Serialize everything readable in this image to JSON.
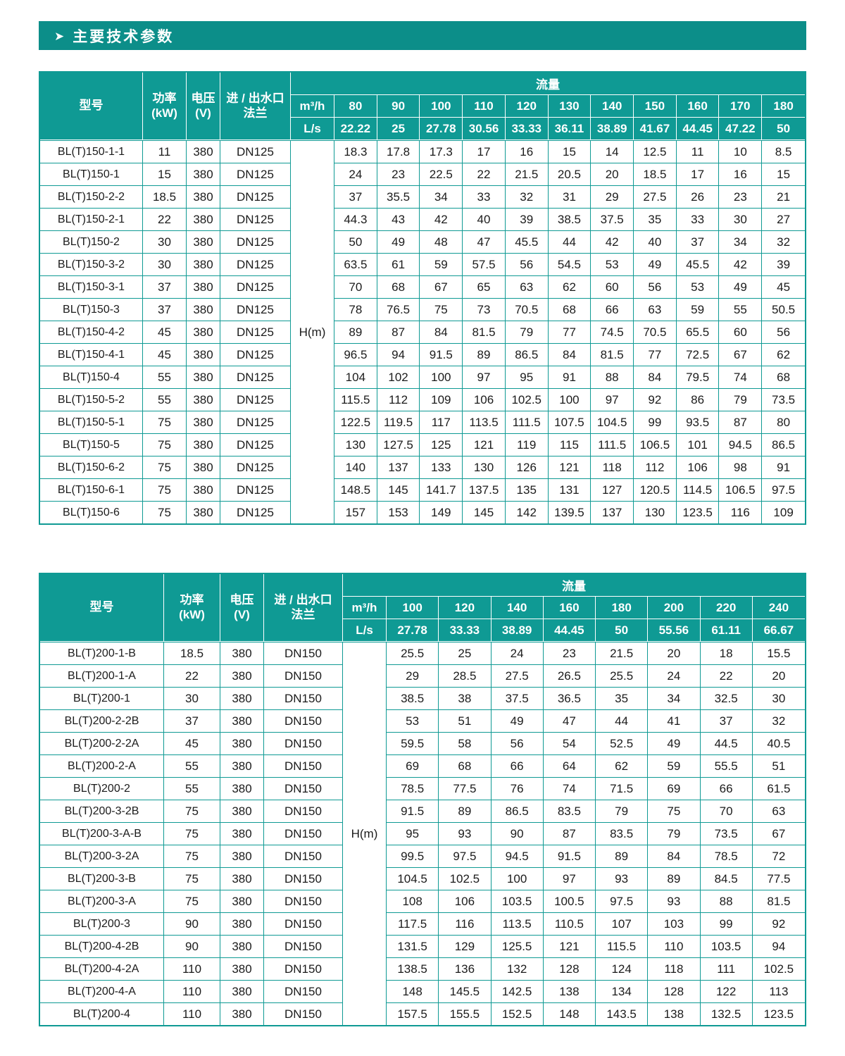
{
  "page": {
    "section_title": "主要技术参数",
    "arrow_icon": "➤",
    "accent_color": "#0f9a94",
    "banner_color": "#0c8e89"
  },
  "table_headers": {
    "model": "型号",
    "power": "功率\n(kW)",
    "voltage": "电压\n(V)",
    "flange": "进 / 出水口\n法兰",
    "flow_group": "流量",
    "unit_m3h": "m³/h",
    "unit_ls": "L/s",
    "head_label": "H(m)"
  },
  "tables": [
    {
      "flow_m3h": [
        "80",
        "90",
        "100",
        "110",
        "120",
        "130",
        "140",
        "150",
        "160",
        "170",
        "180"
      ],
      "flow_ls": [
        "22.22",
        "25",
        "27.78",
        "30.56",
        "33.33",
        "36.11",
        "38.89",
        "41.67",
        "44.45",
        "47.22",
        "50"
      ],
      "rows": [
        {
          "model": "BL(T)150-1-1",
          "power": "11",
          "voltage": "380",
          "flange": "DN125",
          "head_m": [
            "18.3",
            "17.8",
            "17.3",
            "17",
            "16",
            "15",
            "14",
            "12.5",
            "11",
            "10",
            "8.5"
          ]
        },
        {
          "model": "BL(T)150-1",
          "power": "15",
          "voltage": "380",
          "flange": "DN125",
          "head_m": [
            "24",
            "23",
            "22.5",
            "22",
            "21.5",
            "20.5",
            "20",
            "18.5",
            "17",
            "16",
            "15"
          ]
        },
        {
          "model": "BL(T)150-2-2",
          "power": "18.5",
          "voltage": "380",
          "flange": "DN125",
          "head_m": [
            "37",
            "35.5",
            "34",
            "33",
            "32",
            "31",
            "29",
            "27.5",
            "26",
            "23",
            "21"
          ]
        },
        {
          "model": "BL(T)150-2-1",
          "power": "22",
          "voltage": "380",
          "flange": "DN125",
          "head_m": [
            "44.3",
            "43",
            "42",
            "40",
            "39",
            "38.5",
            "37.5",
            "35",
            "33",
            "30",
            "27"
          ]
        },
        {
          "model": "BL(T)150-2",
          "power": "30",
          "voltage": "380",
          "flange": "DN125",
          "head_m": [
            "50",
            "49",
            "48",
            "47",
            "45.5",
            "44",
            "42",
            "40",
            "37",
            "34",
            "32"
          ]
        },
        {
          "model": "BL(T)150-3-2",
          "power": "30",
          "voltage": "380",
          "flange": "DN125",
          "head_m": [
            "63.5",
            "61",
            "59",
            "57.5",
            "56",
            "54.5",
            "53",
            "49",
            "45.5",
            "42",
            "39"
          ]
        },
        {
          "model": "BL(T)150-3-1",
          "power": "37",
          "voltage": "380",
          "flange": "DN125",
          "head_m": [
            "70",
            "68",
            "67",
            "65",
            "63",
            "62",
            "60",
            "56",
            "53",
            "49",
            "45"
          ]
        },
        {
          "model": "BL(T)150-3",
          "power": "37",
          "voltage": "380",
          "flange": "DN125",
          "head_m": [
            "78",
            "76.5",
            "75",
            "73",
            "70.5",
            "68",
            "66",
            "63",
            "59",
            "55",
            "50.5"
          ]
        },
        {
          "model": "BL(T)150-4-2",
          "power": "45",
          "voltage": "380",
          "flange": "DN125",
          "head_m": [
            "89",
            "87",
            "84",
            "81.5",
            "79",
            "77",
            "74.5",
            "70.5",
            "65.5",
            "60",
            "56"
          ]
        },
        {
          "model": "BL(T)150-4-1",
          "power": "45",
          "voltage": "380",
          "flange": "DN125",
          "head_m": [
            "96.5",
            "94",
            "91.5",
            "89",
            "86.5",
            "84",
            "81.5",
            "77",
            "72.5",
            "67",
            "62"
          ]
        },
        {
          "model": "BL(T)150-4",
          "power": "55",
          "voltage": "380",
          "flange": "DN125",
          "head_m": [
            "104",
            "102",
            "100",
            "97",
            "95",
            "91",
            "88",
            "84",
            "79.5",
            "74",
            "68"
          ]
        },
        {
          "model": "BL(T)150-5-2",
          "power": "55",
          "voltage": "380",
          "flange": "DN125",
          "head_m": [
            "115.5",
            "112",
            "109",
            "106",
            "102.5",
            "100",
            "97",
            "92",
            "86",
            "79",
            "73.5"
          ]
        },
        {
          "model": "BL(T)150-5-1",
          "power": "75",
          "voltage": "380",
          "flange": "DN125",
          "head_m": [
            "122.5",
            "119.5",
            "117",
            "113.5",
            "111.5",
            "107.5",
            "104.5",
            "99",
            "93.5",
            "87",
            "80"
          ]
        },
        {
          "model": "BL(T)150-5",
          "power": "75",
          "voltage": "380",
          "flange": "DN125",
          "head_m": [
            "130",
            "127.5",
            "125",
            "121",
            "119",
            "115",
            "111.5",
            "106.5",
            "101",
            "94.5",
            "86.5"
          ]
        },
        {
          "model": "BL(T)150-6-2",
          "power": "75",
          "voltage": "380",
          "flange": "DN125",
          "head_m": [
            "140",
            "137",
            "133",
            "130",
            "126",
            "121",
            "118",
            "112",
            "106",
            "98",
            "91"
          ]
        },
        {
          "model": "BL(T)150-6-1",
          "power": "75",
          "voltage": "380",
          "flange": "DN125",
          "head_m": [
            "148.5",
            "145",
            "141.7",
            "137.5",
            "135",
            "131",
            "127",
            "120.5",
            "114.5",
            "106.5",
            "97.5"
          ]
        },
        {
          "model": "BL(T)150-6",
          "power": "75",
          "voltage": "380",
          "flange": "DN125",
          "head_m": [
            "157",
            "153",
            "149",
            "145",
            "142",
            "139.5",
            "137",
            "130",
            "123.5",
            "116",
            "109"
          ]
        }
      ]
    },
    {
      "flow_m3h": [
        "100",
        "120",
        "140",
        "160",
        "180",
        "200",
        "220",
        "240"
      ],
      "flow_ls": [
        "27.78",
        "33.33",
        "38.89",
        "44.45",
        "50",
        "55.56",
        "61.11",
        "66.67"
      ],
      "rows": [
        {
          "model": "BL(T)200-1-B",
          "power": "18.5",
          "voltage": "380",
          "flange": "DN150",
          "head_m": [
            "25.5",
            "25",
            "24",
            "23",
            "21.5",
            "20",
            "18",
            "15.5"
          ]
        },
        {
          "model": "BL(T)200-1-A",
          "power": "22",
          "voltage": "380",
          "flange": "DN150",
          "head_m": [
            "29",
            "28.5",
            "27.5",
            "26.5",
            "25.5",
            "24",
            "22",
            "20"
          ]
        },
        {
          "model": "BL(T)200-1",
          "power": "30",
          "voltage": "380",
          "flange": "DN150",
          "head_m": [
            "38.5",
            "38",
            "37.5",
            "36.5",
            "35",
            "34",
            "32.5",
            "30"
          ]
        },
        {
          "model": "BL(T)200-2-2B",
          "power": "37",
          "voltage": "380",
          "flange": "DN150",
          "head_m": [
            "53",
            "51",
            "49",
            "47",
            "44",
            "41",
            "37",
            "32"
          ]
        },
        {
          "model": "BL(T)200-2-2A",
          "power": "45",
          "voltage": "380",
          "flange": "DN150",
          "head_m": [
            "59.5",
            "58",
            "56",
            "54",
            "52.5",
            "49",
            "44.5",
            "40.5"
          ]
        },
        {
          "model": "BL(T)200-2-A",
          "power": "55",
          "voltage": "380",
          "flange": "DN150",
          "head_m": [
            "69",
            "68",
            "66",
            "64",
            "62",
            "59",
            "55.5",
            "51"
          ]
        },
        {
          "model": "BL(T)200-2",
          "power": "55",
          "voltage": "380",
          "flange": "DN150",
          "head_m": [
            "78.5",
            "77.5",
            "76",
            "74",
            "71.5",
            "69",
            "66",
            "61.5"
          ]
        },
        {
          "model": "BL(T)200-3-2B",
          "power": "75",
          "voltage": "380",
          "flange": "DN150",
          "head_m": [
            "91.5",
            "89",
            "86.5",
            "83.5",
            "79",
            "75",
            "70",
            "63"
          ]
        },
        {
          "model": "BL(T)200-3-A-B",
          "power": "75",
          "voltage": "380",
          "flange": "DN150",
          "head_m": [
            "95",
            "93",
            "90",
            "87",
            "83.5",
            "79",
            "73.5",
            "67"
          ]
        },
        {
          "model": "BL(T)200-3-2A",
          "power": "75",
          "voltage": "380",
          "flange": "DN150",
          "head_m": [
            "99.5",
            "97.5",
            "94.5",
            "91.5",
            "89",
            "84",
            "78.5",
            "72"
          ]
        },
        {
          "model": "BL(T)200-3-B",
          "power": "75",
          "voltage": "380",
          "flange": "DN150",
          "head_m": [
            "104.5",
            "102.5",
            "100",
            "97",
            "93",
            "89",
            "84.5",
            "77.5"
          ]
        },
        {
          "model": "BL(T)200-3-A",
          "power": "75",
          "voltage": "380",
          "flange": "DN150",
          "head_m": [
            "108",
            "106",
            "103.5",
            "100.5",
            "97.5",
            "93",
            "88",
            "81.5"
          ]
        },
        {
          "model": "BL(T)200-3",
          "power": "90",
          "voltage": "380",
          "flange": "DN150",
          "head_m": [
            "117.5",
            "116",
            "113.5",
            "110.5",
            "107",
            "103",
            "99",
            "92"
          ]
        },
        {
          "model": "BL(T)200-4-2B",
          "power": "90",
          "voltage": "380",
          "flange": "DN150",
          "head_m": [
            "131.5",
            "129",
            "125.5",
            "121",
            "115.5",
            "110",
            "103.5",
            "94"
          ]
        },
        {
          "model": "BL(T)200-4-2A",
          "power": "110",
          "voltage": "380",
          "flange": "DN150",
          "head_m": [
            "138.5",
            "136",
            "132",
            "128",
            "124",
            "118",
            "111",
            "102.5"
          ]
        },
        {
          "model": "BL(T)200-4-A",
          "power": "110",
          "voltage": "380",
          "flange": "DN150",
          "head_m": [
            "148",
            "145.5",
            "142.5",
            "138",
            "134",
            "128",
            "122",
            "113"
          ]
        },
        {
          "model": "BL(T)200-4",
          "power": "110",
          "voltage": "380",
          "flange": "DN150",
          "head_m": [
            "157.5",
            "155.5",
            "152.5",
            "148",
            "143.5",
            "138",
            "132.5",
            "123.5"
          ]
        }
      ]
    }
  ]
}
